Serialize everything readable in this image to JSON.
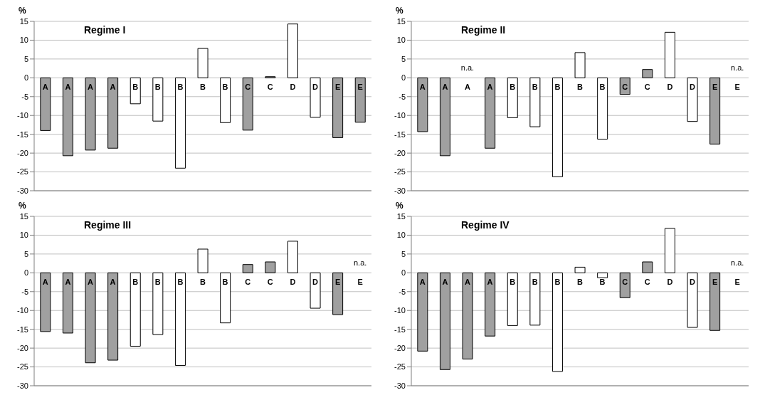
{
  "chart_data": [
    {
      "type": "bar",
      "title": "Regime I",
      "ylabel": "%",
      "categories": [
        "A",
        "A",
        "A",
        "A",
        "B",
        "B",
        "B",
        "B",
        "B",
        "C",
        "C",
        "D",
        "D",
        "E",
        "E"
      ],
      "values": [
        -14,
        -20.7,
        -19.2,
        -18.7,
        -6.9,
        -11.5,
        -24,
        7.8,
        -11.9,
        -13.9,
        0.3,
        14.3,
        -10.5,
        -15.9,
        -11.8
      ],
      "colors": [
        "#a0a0a0",
        "#a0a0a0",
        "#a0a0a0",
        "#a0a0a0",
        "#ffffff",
        "#ffffff",
        "#ffffff",
        "#ffffff",
        "#ffffff",
        "#a0a0a0",
        "#a0a0a0",
        "#ffffff",
        "#ffffff",
        "#a0a0a0",
        "#a0a0a0"
      ],
      "ylim": [
        -30,
        15
      ],
      "yticks": [
        -30,
        -25,
        -20,
        -15,
        -10,
        -5,
        0,
        5,
        10,
        15
      ],
      "grid": "y"
    },
    {
      "type": "bar",
      "title": "Regime II",
      "ylabel": "%",
      "categories": [
        "A",
        "A",
        "A",
        "A",
        "B",
        "B",
        "B",
        "B",
        "B",
        "C",
        "C",
        "D",
        "D",
        "E",
        "E"
      ],
      "values": [
        -14.3,
        -20.7,
        null,
        -18.7,
        -10.6,
        -13,
        -26.3,
        6.7,
        -16.3,
        -4.4,
        2.2,
        12.1,
        -11.6,
        -17.6,
        null
      ],
      "colors": [
        "#a0a0a0",
        "#a0a0a0",
        "#a0a0a0",
        "#a0a0a0",
        "#ffffff",
        "#ffffff",
        "#ffffff",
        "#ffffff",
        "#ffffff",
        "#a0a0a0",
        "#a0a0a0",
        "#ffffff",
        "#ffffff",
        "#a0a0a0",
        "#a0a0a0"
      ],
      "ylim": [
        -30,
        15
      ],
      "yticks": [
        -30,
        -25,
        -20,
        -15,
        -10,
        -5,
        0,
        5,
        10,
        15
      ],
      "grid": "y",
      "annotations": [
        "n.a.",
        "n.a."
      ]
    },
    {
      "type": "bar",
      "title": "Regime III",
      "ylabel": "%",
      "categories": [
        "A",
        "A",
        "A",
        "A",
        "B",
        "B",
        "B",
        "B",
        "B",
        "C",
        "C",
        "D",
        "D",
        "E",
        "E"
      ],
      "values": [
        -15.6,
        -16,
        -23.9,
        -23.2,
        -19.5,
        -16.4,
        -24.6,
        6.3,
        -13.3,
        2.2,
        2.9,
        8.4,
        -9.4,
        -11.1,
        null
      ],
      "colors": [
        "#a0a0a0",
        "#a0a0a0",
        "#a0a0a0",
        "#a0a0a0",
        "#ffffff",
        "#ffffff",
        "#ffffff",
        "#ffffff",
        "#ffffff",
        "#a0a0a0",
        "#a0a0a0",
        "#ffffff",
        "#ffffff",
        "#a0a0a0",
        "#a0a0a0"
      ],
      "ylim": [
        -30,
        15
      ],
      "yticks": [
        -30,
        -25,
        -20,
        -15,
        -10,
        -5,
        0,
        5,
        10,
        15
      ],
      "grid": "y",
      "annotations": [
        "n.a."
      ]
    },
    {
      "type": "bar",
      "title": "Regime IV",
      "ylabel": "%",
      "categories": [
        "A",
        "A",
        "A",
        "A",
        "B",
        "B",
        "B",
        "B",
        "B",
        "C",
        "C",
        "D",
        "D",
        "E",
        "E"
      ],
      "values": [
        -20.8,
        -25.7,
        -22.9,
        -16.8,
        -14,
        -13.9,
        -26.2,
        1.5,
        -1.3,
        -6.6,
        2.9,
        11.8,
        -14.5,
        -15.3,
        null
      ],
      "colors": [
        "#a0a0a0",
        "#a0a0a0",
        "#a0a0a0",
        "#a0a0a0",
        "#ffffff",
        "#ffffff",
        "#ffffff",
        "#ffffff",
        "#ffffff",
        "#a0a0a0",
        "#a0a0a0",
        "#ffffff",
        "#ffffff",
        "#a0a0a0",
        "#a0a0a0"
      ],
      "ylim": [
        -30,
        15
      ],
      "yticks": [
        -30,
        -25,
        -20,
        -15,
        -10,
        -5,
        0,
        5,
        10,
        15
      ],
      "grid": "y",
      "annotations": [
        "n.a."
      ]
    }
  ]
}
